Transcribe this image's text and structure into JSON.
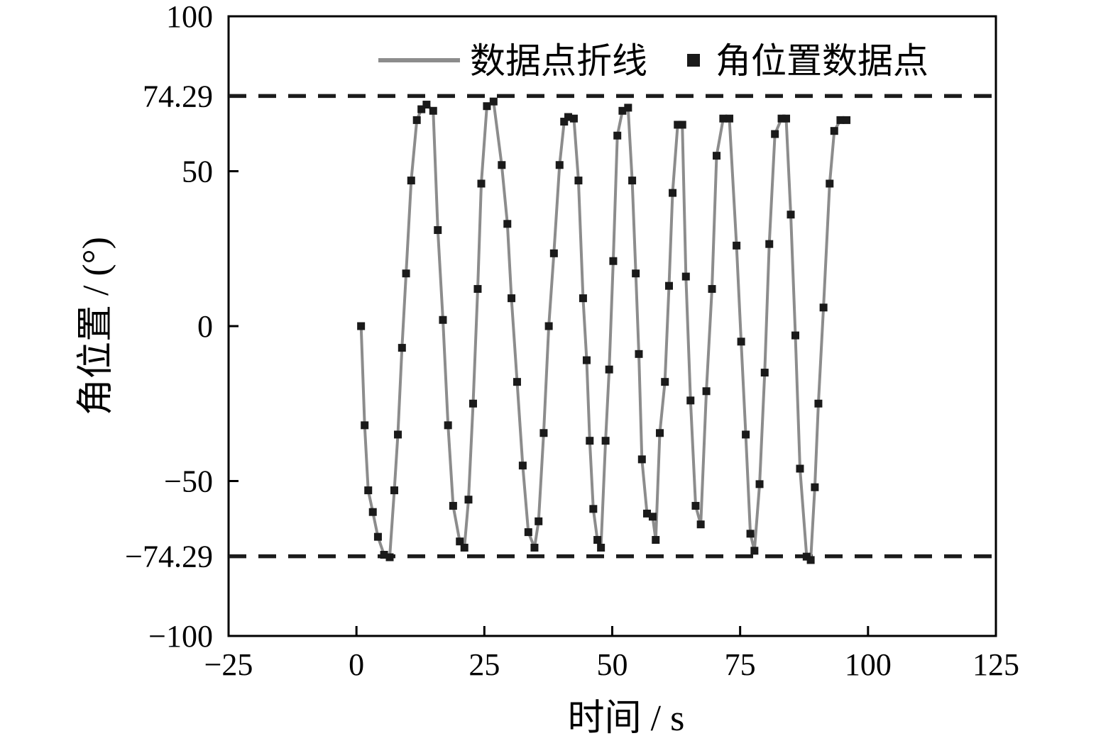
{
  "chart_data": {
    "type": "line",
    "title": "",
    "xlabel": "时间 / s",
    "ylabel": "角位置 / (°)",
    "xlim": [
      -25,
      125
    ],
    "ylim": [
      -100,
      100
    ],
    "grid": false,
    "legend_position": "upper center",
    "x_ticks": [
      -25,
      0,
      25,
      50,
      75,
      100,
      125
    ],
    "x_tick_labels": [
      "−25",
      "0",
      "25",
      "50",
      "75",
      "100",
      "125"
    ],
    "y_ticks": [
      100,
      74.29,
      50,
      0,
      -50,
      -74.29,
      -100
    ],
    "y_tick_labels": [
      "100",
      "74.29",
      "50",
      "0",
      "−50",
      "−74.29",
      "−100"
    ],
    "bounds": {
      "upper": 74.29,
      "lower": -74.29,
      "style": "dashed",
      "color": "#1c1c1c"
    },
    "legend": {
      "line_label": "数据点折线",
      "point_label": "角位置数据点"
    },
    "colors": {
      "line": "#8c8c8c",
      "marker": "#1a1a1a",
      "axis": "#000000"
    },
    "series": [
      {
        "name": "角位置数据点",
        "line_name": "数据点折线",
        "marker": "square",
        "points": [
          [
            0.9,
            0
          ],
          [
            1.6,
            -32
          ],
          [
            2.3,
            -53
          ],
          [
            3.2,
            -60
          ],
          [
            4.2,
            -68
          ],
          [
            5.4,
            -73.8
          ],
          [
            6.5,
            -74.6
          ],
          [
            7.4,
            -53
          ],
          [
            8.1,
            -35
          ],
          [
            8.9,
            -7
          ],
          [
            9.7,
            17
          ],
          [
            10.7,
            47
          ],
          [
            11.8,
            66.5
          ],
          [
            12.7,
            70
          ],
          [
            13.7,
            71.5
          ],
          [
            15.0,
            69.5
          ],
          [
            15.9,
            31
          ],
          [
            16.9,
            2
          ],
          [
            17.9,
            -32
          ],
          [
            18.9,
            -58
          ],
          [
            20.2,
            -69.5
          ],
          [
            21.1,
            -71.5
          ],
          [
            21.9,
            -56
          ],
          [
            22.8,
            -25
          ],
          [
            23.7,
            12
          ],
          [
            24.4,
            46
          ],
          [
            25.5,
            71
          ],
          [
            26.8,
            72.5
          ],
          [
            28.4,
            52
          ],
          [
            29.5,
            33
          ],
          [
            30.3,
            9
          ],
          [
            31.4,
            -18
          ],
          [
            32.5,
            -45
          ],
          [
            33.6,
            -66.5
          ],
          [
            34.8,
            -71.5
          ],
          [
            35.6,
            -63
          ],
          [
            36.6,
            -34.5
          ],
          [
            37.6,
            0
          ],
          [
            38.6,
            23.5
          ],
          [
            39.7,
            52
          ],
          [
            40.6,
            66
          ],
          [
            41.4,
            67.5
          ],
          [
            42.5,
            67
          ],
          [
            43.4,
            47
          ],
          [
            44.3,
            9
          ],
          [
            45.0,
            -11
          ],
          [
            45.6,
            -37
          ],
          [
            46.3,
            -59
          ],
          [
            47.1,
            -69
          ],
          [
            47.8,
            -71.5
          ],
          [
            48.7,
            -37
          ],
          [
            49.4,
            -14
          ],
          [
            50.2,
            21
          ],
          [
            51.0,
            61.5
          ],
          [
            52.0,
            69.5
          ],
          [
            53.1,
            70.5
          ],
          [
            53.9,
            47
          ],
          [
            54.6,
            17
          ],
          [
            55.2,
            -9
          ],
          [
            55.8,
            -43
          ],
          [
            56.8,
            -60.5
          ],
          [
            57.9,
            -61.5
          ],
          [
            58.5,
            -69
          ],
          [
            59.3,
            -34.5
          ],
          [
            60.3,
            -18
          ],
          [
            61.1,
            13
          ],
          [
            61.8,
            43
          ],
          [
            62.8,
            65
          ],
          [
            63.7,
            65
          ],
          [
            64.4,
            16
          ],
          [
            65.3,
            -24
          ],
          [
            66.3,
            -58
          ],
          [
            67.3,
            -64
          ],
          [
            68.4,
            -21
          ],
          [
            69.5,
            12
          ],
          [
            70.4,
            55
          ],
          [
            71.7,
            67
          ],
          [
            72.9,
            67
          ],
          [
            74.3,
            26
          ],
          [
            75.2,
            -5
          ],
          [
            76.1,
            -35
          ],
          [
            77.0,
            -67
          ],
          [
            77.8,
            -72.5
          ],
          [
            78.8,
            -51
          ],
          [
            79.8,
            -15
          ],
          [
            80.7,
            26.5
          ],
          [
            81.8,
            62
          ],
          [
            83.1,
            67
          ],
          [
            84.0,
            67
          ],
          [
            84.9,
            36
          ],
          [
            85.8,
            -3
          ],
          [
            86.7,
            -46
          ],
          [
            88.0,
            -74.4
          ],
          [
            88.8,
            -75.5
          ],
          [
            89.6,
            -52
          ],
          [
            90.3,
            -25
          ],
          [
            91.3,
            6
          ],
          [
            92.5,
            46
          ],
          [
            93.4,
            63
          ],
          [
            94.6,
            66.5
          ],
          [
            95.8,
            66.5
          ]
        ]
      }
    ]
  }
}
